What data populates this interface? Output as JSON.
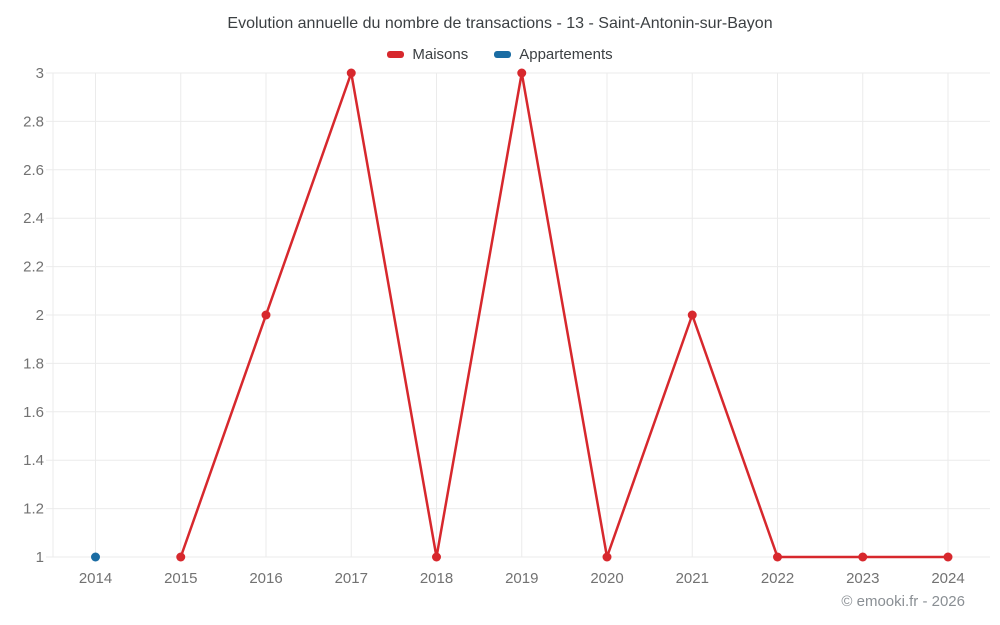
{
  "page": {
    "footer": "© emooki.fr - 2026"
  },
  "chart_data": {
    "type": "line",
    "title": "Evolution annuelle du nombre de transactions - 13 - Saint-Antonin-sur-Bayon",
    "x": [
      2014,
      2015,
      2016,
      2017,
      2018,
      2019,
      2020,
      2021,
      2022,
      2023,
      2024
    ],
    "xlabel": "",
    "ylabel": "",
    "ylim": [
      1,
      3
    ],
    "yticks": [
      "1",
      "1.2",
      "1.4",
      "1.6",
      "1.8",
      "2",
      "2.2",
      "2.4",
      "2.6",
      "2.8",
      "3"
    ],
    "grid": true,
    "legend_position": "top",
    "series": [
      {
        "name": "Maisons",
        "color": "#d7282d",
        "x": [
          2015,
          2016,
          2017,
          2018,
          2019,
          2020,
          2021,
          2022,
          2023,
          2024
        ],
        "values": [
          1,
          2,
          3,
          1,
          3,
          1,
          2,
          1,
          1,
          1
        ]
      },
      {
        "name": "Appartements",
        "color": "#1a6ca3",
        "x": [
          2014
        ],
        "values": [
          1
        ]
      }
    ],
    "colors": {
      "grid": "#ebebeb",
      "tick_label": "#727272",
      "title": "#3c4043",
      "footer": "#8a8f94"
    }
  }
}
